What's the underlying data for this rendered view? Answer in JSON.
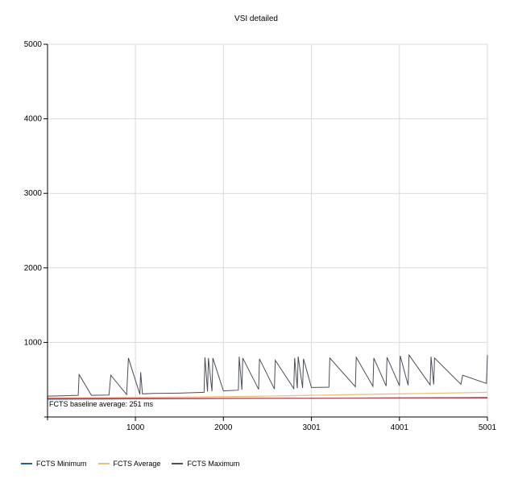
{
  "chart_data": {
    "type": "line",
    "title": "VSI detailed",
    "xlabel": "",
    "ylabel": "",
    "xlim": [
      1,
      5001
    ],
    "ylim": [
      0,
      5000
    ],
    "x_ticks": [
      {
        "value": 1000,
        "label": "1000"
      },
      {
        "value": 2000,
        "label": "2000"
      },
      {
        "value": 3001,
        "label": "3001"
      },
      {
        "value": 4001,
        "label": "4001"
      },
      {
        "value": 5001,
        "label": "5001"
      }
    ],
    "y_ticks": [
      {
        "value": 1000,
        "label": "1000"
      },
      {
        "value": 2000,
        "label": "2000"
      },
      {
        "value": 3000,
        "label": "3000"
      },
      {
        "value": 4000,
        "label": "4000"
      },
      {
        "value": 5000,
        "label": "5000"
      }
    ],
    "grid": true,
    "legend_position": "bottom-left",
    "baseline": {
      "value": 251,
      "label": "FCTS baseline average: 251 ms",
      "color": "#d9534f"
    },
    "series": [
      {
        "name": "FCTS Minimum",
        "color": "#1f5fa8",
        "x": [
          1,
          500,
          1000,
          1500,
          2000,
          2500,
          3001,
          3500,
          4001,
          4500,
          5001
        ],
        "values": [
          240,
          242,
          244,
          246,
          248,
          250,
          252,
          254,
          256,
          258,
          260
        ]
      },
      {
        "name": "FCTS Average",
        "color": "#e8c27a",
        "x": [
          1,
          500,
          1000,
          1500,
          2000,
          2500,
          3001,
          3500,
          4001,
          4500,
          5001
        ],
        "values": [
          255,
          258,
          262,
          266,
          272,
          280,
          290,
          300,
          310,
          320,
          330
        ]
      },
      {
        "name": "FCTS Maximum",
        "color": "#4a4e57",
        "x": [
          1,
          200,
          350,
          360,
          500,
          700,
          720,
          900,
          920,
          1050,
          1060,
          1080,
          1200,
          1500,
          1780,
          1790,
          1820,
          1830,
          1870,
          1880,
          2000,
          2170,
          2180,
          2210,
          2220,
          2400,
          2410,
          2580,
          2590,
          2800,
          2810,
          2840,
          2850,
          2900,
          2910,
          3001,
          3200,
          3210,
          3500,
          3510,
          3700,
          3710,
          3850,
          3860,
          4001,
          4010,
          4100,
          4110,
          4350,
          4360,
          4390,
          4400,
          4700,
          4720,
          4990,
          5001
        ],
        "values": [
          280,
          285,
          290,
          570,
          290,
          295,
          560,
          300,
          790,
          305,
          600,
          310,
          315,
          320,
          330,
          800,
          340,
          790,
          345,
          790,
          350,
          360,
          810,
          365,
          790,
          370,
          780,
          375,
          760,
          380,
          790,
          385,
          810,
          390,
          780,
          395,
          400,
          790,
          405,
          800,
          410,
          790,
          415,
          800,
          420,
          820,
          425,
          830,
          430,
          810,
          435,
          790,
          440,
          560,
          450,
          830
        ]
      }
    ]
  }
}
